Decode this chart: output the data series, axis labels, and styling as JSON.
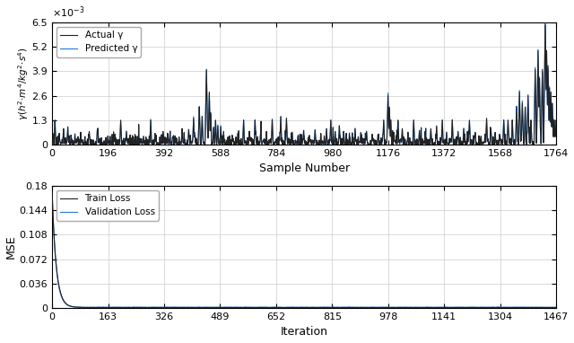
{
  "top_plot": {
    "xlabel": "Sample Number",
    "ylabel": "γ(h²·m⁴/kg²·s⁴)",
    "ylim": [
      0,
      0.0065
    ],
    "xlim": [
      0,
      1764
    ],
    "xticks": [
      0,
      196,
      392,
      588,
      784,
      980,
      1176,
      1372,
      1568,
      1764
    ],
    "ytick_labels": [
      "0",
      "1.3",
      "2.6",
      "3.9",
      "5.2",
      "6.5"
    ],
    "ytick_values": [
      0,
      0.0013,
      0.0026,
      0.0039,
      0.0052,
      0.0065
    ],
    "actual_color": "#222222",
    "predicted_color": "#2277dd",
    "legend_actual": "Actual γ",
    "legend_predicted": "Predicted γ",
    "n_samples": 1764
  },
  "bottom_plot": {
    "xlabel": "Iteration",
    "ylabel": "MSE",
    "ylim": [
      0,
      0.18
    ],
    "xlim": [
      0,
      1467
    ],
    "xticks": [
      0,
      163,
      326,
      489,
      652,
      815,
      978,
      1141,
      1304,
      1467
    ],
    "ytick_labels": [
      "0",
      "0.036",
      "0.072",
      "0.108",
      "0.144",
      "0.18"
    ],
    "ytick_values": [
      0,
      0.036,
      0.072,
      0.108,
      0.144,
      0.18
    ],
    "train_color": "#222222",
    "val_color": "#2277dd",
    "legend_train": "Train Loss",
    "legend_val": "Validation Loss",
    "n_iters": 1467
  },
  "background_color": "#ffffff",
  "grid_color": "#cccccc"
}
